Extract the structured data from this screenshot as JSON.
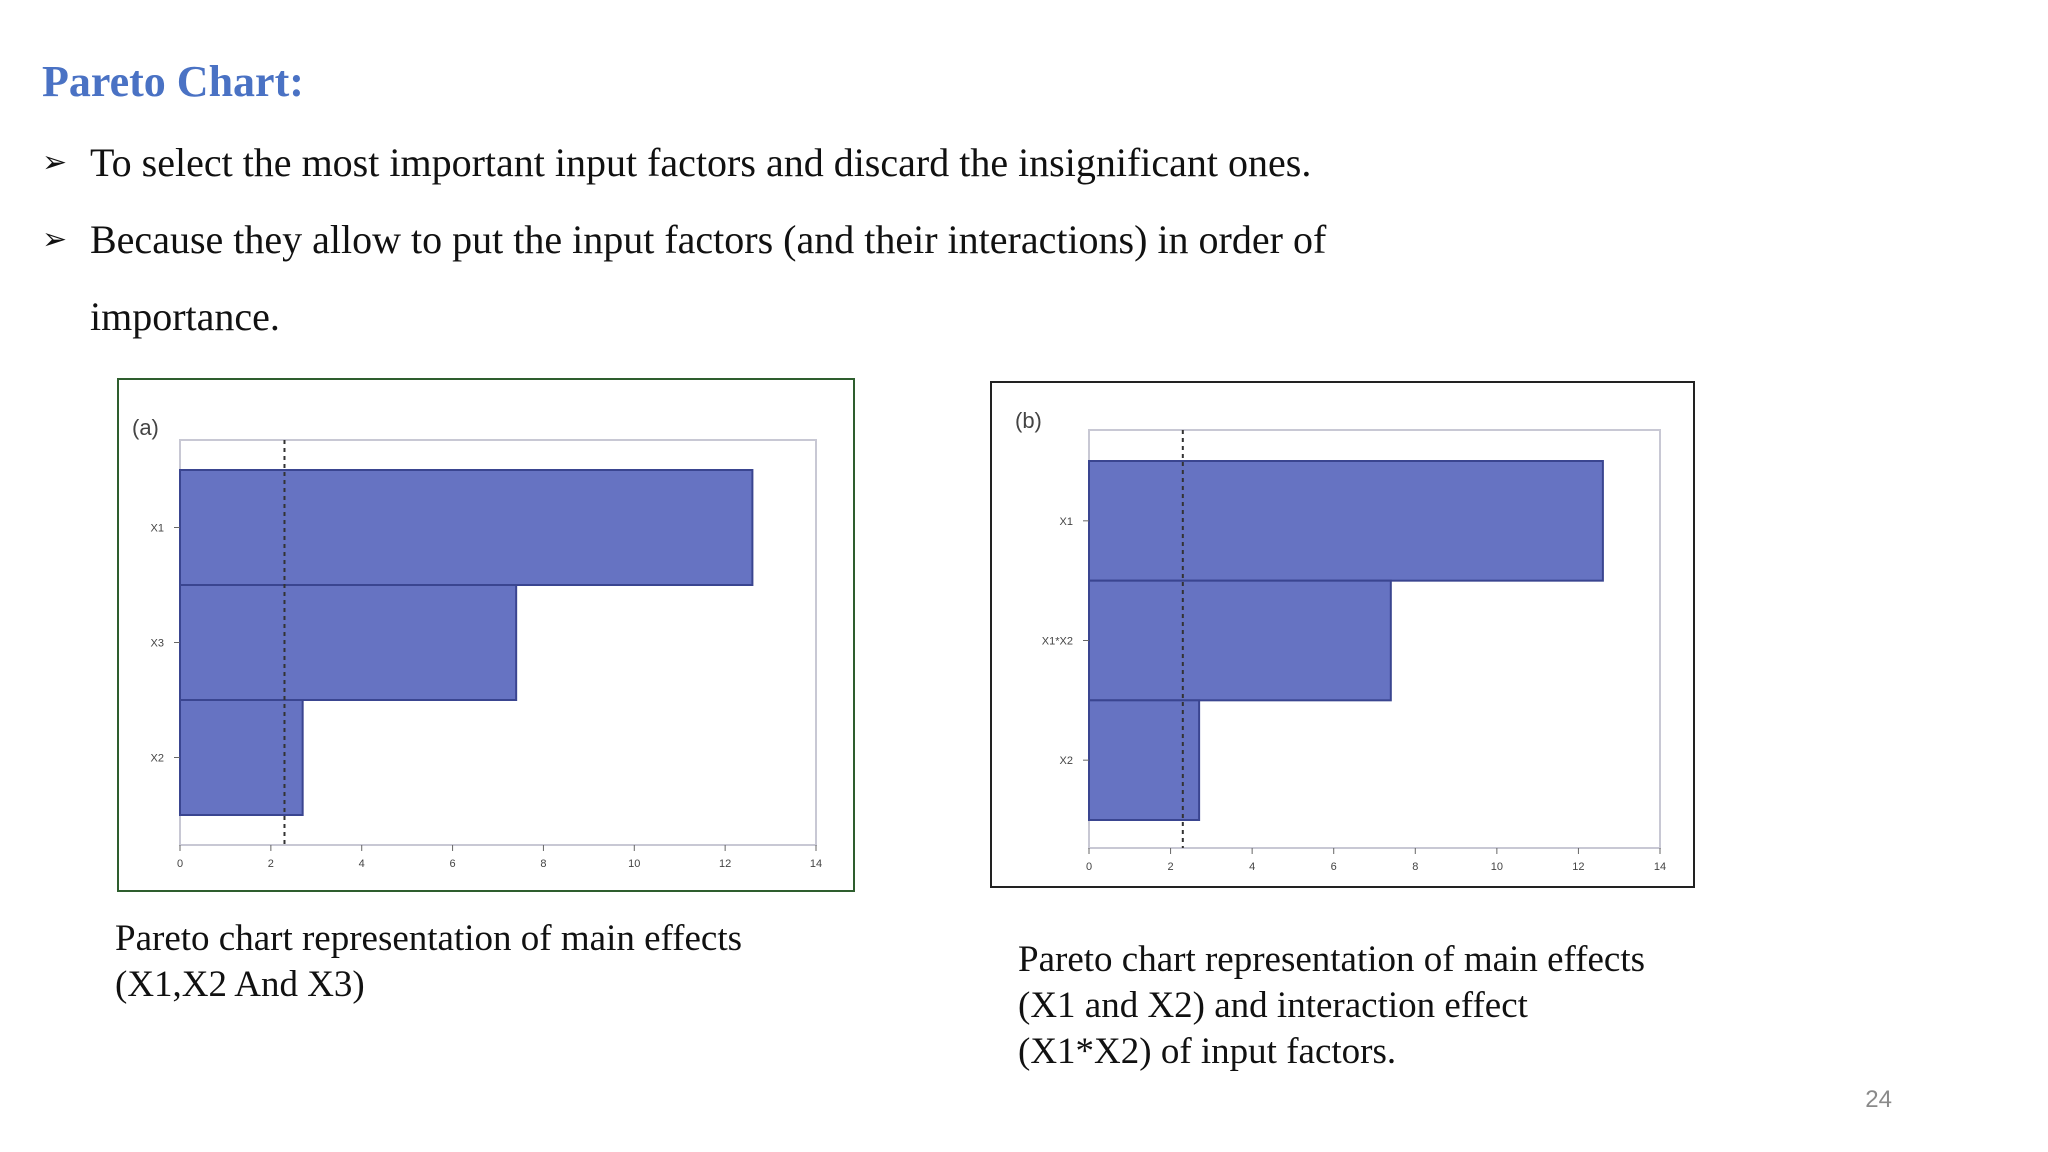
{
  "slide": {
    "title": "Pareto Chart:",
    "bullets": [
      {
        "marker": "➢",
        "lines": [
          "To select the most important input factors and discard the insignificant ones."
        ]
      },
      {
        "marker": "➢",
        "lines": [
          "Because they allow to put the input factors (and their interactions) in order of",
          "importance."
        ]
      }
    ],
    "captions": [
      [
        "Pareto chart representation of main effects",
        "(X1,X2 And X3)"
      ],
      [
        "Pareto chart representation of main effects",
        "(X1 and X2) and interaction effect",
        "(X1*X2) of input factors."
      ]
    ],
    "page_number": "24"
  },
  "colors": {
    "title": "#4a72c4",
    "bar_fill": "#6673c2",
    "bar_stroke": "#3a4590",
    "frame_a": "#2e5e2e",
    "frame_b": "#222222",
    "reference_line": "#333333"
  },
  "chart_data": [
    {
      "type": "bar",
      "orientation": "horizontal",
      "panel_label": "(a)",
      "categories": [
        "X1",
        "X3",
        "X2"
      ],
      "values": [
        12.6,
        7.4,
        2.7
      ],
      "xlim": [
        0,
        14
      ],
      "xticks": [
        0,
        2,
        4,
        6,
        8,
        10,
        12,
        14
      ],
      "reference_line": 2.3,
      "grid": false
    },
    {
      "type": "bar",
      "orientation": "horizontal",
      "panel_label": "(b)",
      "categories": [
        "X1",
        "X1*X2",
        "X2"
      ],
      "values": [
        12.6,
        7.4,
        2.7
      ],
      "xlim": [
        0,
        14
      ],
      "xticks": [
        0,
        2,
        4,
        6,
        8,
        10,
        12,
        14
      ],
      "reference_line": 2.3,
      "grid": false
    }
  ]
}
